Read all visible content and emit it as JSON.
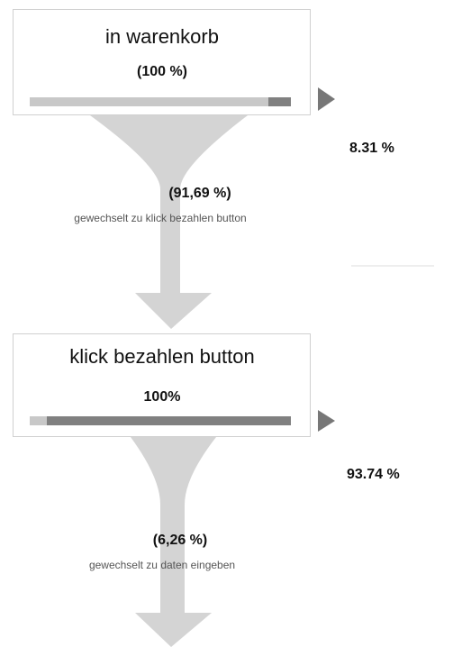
{
  "steps": [
    {
      "label": "in warenkorb",
      "percent": "(100 %)",
      "exit": "8.31 %",
      "transition_percent": "(91,69 %)",
      "transition_text": "gewechselt zu klick bezahlen button"
    },
    {
      "label": "klick bezahlen button",
      "percent": "100%",
      "exit": "93.74 %",
      "transition_percent": "(6,26 %)",
      "transition_text": "gewechselt zu daten eingeben"
    }
  ]
}
